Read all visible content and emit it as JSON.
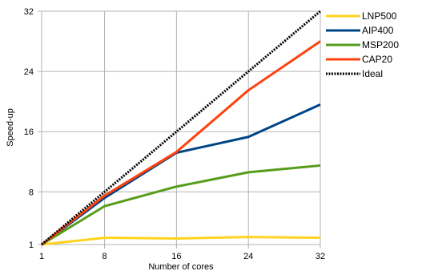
{
  "chart_data": {
    "type": "line",
    "title": "",
    "xlabel": "Number of cores",
    "ylabel": "Speed-up",
    "x": [
      1,
      8,
      16,
      24,
      32
    ],
    "xticks": [
      1,
      8,
      16,
      24,
      32
    ],
    "yticks": [
      1,
      8,
      16,
      24,
      32
    ],
    "xlim": [
      1,
      32
    ],
    "ylim": [
      1,
      32
    ],
    "grid": "vertical and horizontal",
    "legend_position": "right",
    "series": [
      {
        "name": "LNP500",
        "color": "#ffd320",
        "dash": "",
        "values": [
          1,
          1.9,
          1.8,
          2.0,
          1.9
        ]
      },
      {
        "name": "AIP400",
        "color": "#004586",
        "dash": "",
        "values": [
          1,
          7.2,
          13.2,
          15.3,
          19.6
        ]
      },
      {
        "name": "MSP200",
        "color": "#579d1c",
        "dash": "",
        "values": [
          1,
          6.1,
          8.7,
          10.6,
          11.5
        ]
      },
      {
        "name": "CAP20",
        "color": "#ff420e",
        "dash": "",
        "values": [
          1,
          7.5,
          13.3,
          21.5,
          28.0
        ]
      },
      {
        "name": "Ideal",
        "color": "#000000",
        "dash": "2,1.5",
        "values": [
          1,
          8,
          16,
          24,
          32
        ]
      }
    ]
  }
}
